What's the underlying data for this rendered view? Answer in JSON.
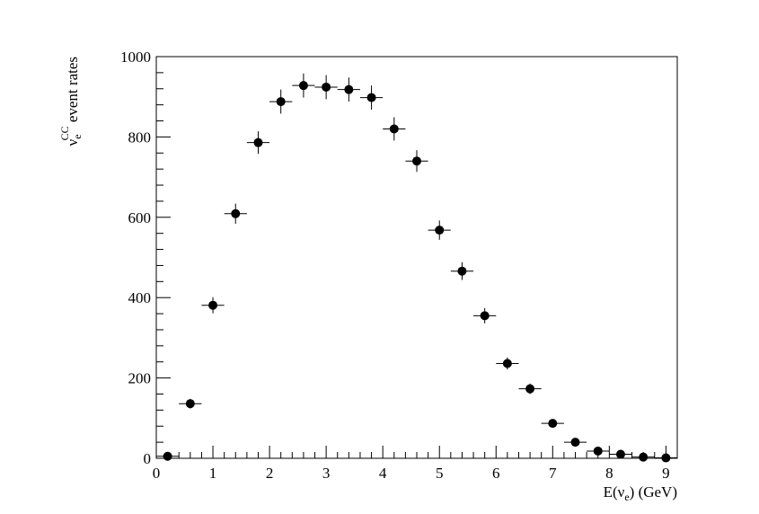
{
  "chart_data": {
    "type": "scatter",
    "title": "",
    "xlabel": "E(ν_e) (GeV)",
    "ylabel": "ν_e^CC event rates",
    "xlim": [
      0,
      9.2
    ],
    "ylim": [
      0,
      1000
    ],
    "x_ticks": [
      0,
      1,
      2,
      3,
      4,
      5,
      6,
      7,
      8,
      9
    ],
    "y_ticks": [
      0,
      200,
      400,
      600,
      800,
      1000
    ],
    "grid": false,
    "legend": "none",
    "marker_color": "#000000",
    "x_bin_half_width": 0.2,
    "series": [
      {
        "x": [
          0.2,
          0.6,
          1.0,
          1.4,
          1.8,
          2.2,
          2.6,
          3.0,
          3.4,
          3.8,
          4.2,
          4.6,
          5.0,
          5.4,
          5.8,
          6.2,
          6.6,
          7.0,
          7.4,
          7.8,
          8.2,
          8.6,
          9.0
        ],
        "y": [
          5,
          136,
          381,
          609,
          786,
          888,
          928,
          924,
          918,
          898,
          820,
          740,
          568,
          466,
          355,
          236,
          173,
          87,
          40,
          18,
          10,
          3,
          1
        ],
        "yerr": [
          2,
          12,
          20,
          25,
          28,
          30,
          30,
          30,
          30,
          30,
          29,
          27,
          24,
          22,
          19,
          15,
          13,
          9,
          6,
          4,
          3,
          2,
          1
        ]
      }
    ]
  }
}
